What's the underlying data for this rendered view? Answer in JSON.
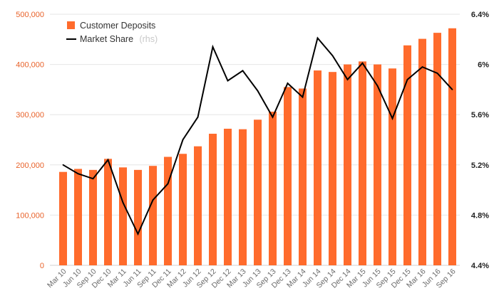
{
  "chart_data": {
    "type": "bar",
    "categories": [
      "Mar 10",
      "Jun 10",
      "Sep 10",
      "Dec 10",
      "Mar 11",
      "Jun 11",
      "Sep 11",
      "Dec 11",
      "Mar 12",
      "Jun 12",
      "Sep 12",
      "Dec 12",
      "Mar 13",
      "Jun 13",
      "Sep 13",
      "Dec 13",
      "Mar 14",
      "Jun 14",
      "Sep 14",
      "Dec 14",
      "Mar 15",
      "Jun 15",
      "Sep 15",
      "Dec 15",
      "Mar 16",
      "Jun 16",
      "Sep 16"
    ],
    "series": [
      {
        "name": "Customer Deposits",
        "type": "bar",
        "axis": "left",
        "color": "#ff6b2c",
        "values": [
          186000,
          192000,
          190000,
          212000,
          195000,
          190000,
          198000,
          216000,
          222000,
          237000,
          262000,
          272000,
          271000,
          290000,
          306000,
          355000,
          352000,
          388000,
          385000,
          400000,
          406000,
          400000,
          392000,
          438000,
          451000,
          463000,
          472000
        ]
      },
      {
        "name": "Market Share",
        "name_note": "(rhs)",
        "type": "line",
        "axis": "right",
        "color": "#000000",
        "values": [
          5.2,
          5.13,
          5.09,
          5.24,
          4.9,
          4.65,
          4.92,
          5.05,
          5.4,
          5.58,
          6.14,
          5.87,
          5.95,
          5.79,
          5.58,
          5.85,
          5.74,
          6.21,
          6.07,
          5.88,
          6.01,
          5.83,
          5.57,
          5.88,
          5.98,
          5.93,
          5.8
        ]
      }
    ],
    "y_left": {
      "ylim": [
        0,
        500000
      ],
      "ticks": [
        "0",
        "100,000",
        "200,000",
        "300,000",
        "400,000",
        "500,000"
      ],
      "color": "#e8622a"
    },
    "y_right": {
      "ylim": [
        4.4,
        6.4
      ],
      "ticks": [
        "4.4%",
        "4.8%",
        "5.2%",
        "5.6%",
        "6%",
        "6.4%"
      ]
    },
    "grid": "horizontal",
    "legend_position": "top-left",
    "title": "",
    "xlabel": "",
    "ylabel": ""
  }
}
